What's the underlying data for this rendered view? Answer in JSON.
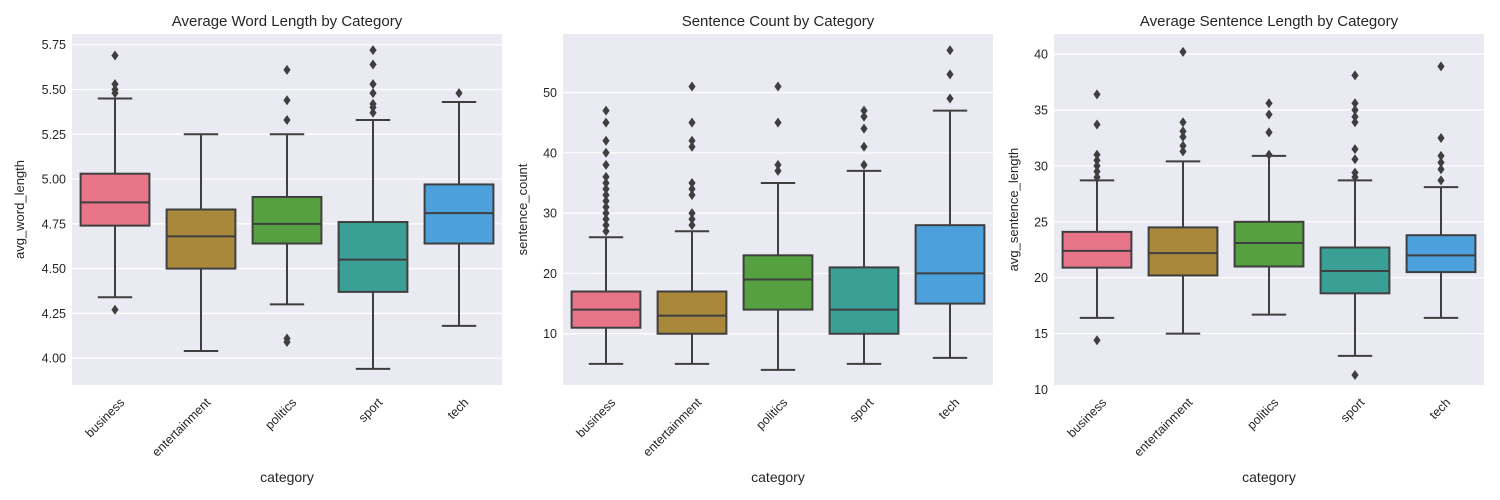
{
  "chart_data": [
    {
      "type": "box",
      "title": "Average Word Length by Category",
      "xlabel": "category",
      "ylabel": "avg_word_length",
      "categories": [
        "business",
        "entertainment",
        "politics",
        "sport",
        "tech"
      ],
      "ylim": [
        3.85,
        5.81
      ],
      "yticks": [
        4.0,
        4.25,
        4.5,
        4.75,
        5.0,
        5.25,
        5.5,
        5.75
      ],
      "ytick_labels": [
        "4.00",
        "4.25",
        "4.50",
        "4.75",
        "5.00",
        "5.25",
        "5.50",
        "5.75"
      ],
      "grid": true,
      "boxes": [
        {
          "category": "business",
          "whislo": 4.34,
          "q1": 4.74,
          "median": 4.87,
          "q3": 5.03,
          "whishi": 5.45,
          "fliers": [
            4.27,
            5.48,
            5.5,
            5.53,
            5.69
          ]
        },
        {
          "category": "entertainment",
          "whislo": 4.04,
          "q1": 4.5,
          "median": 4.68,
          "q3": 4.83,
          "whishi": 5.25,
          "fliers": []
        },
        {
          "category": "politics",
          "whislo": 4.3,
          "q1": 4.64,
          "median": 4.75,
          "q3": 4.9,
          "whishi": 5.25,
          "fliers": [
            4.09,
            4.11,
            5.33,
            5.44,
            5.61
          ]
        },
        {
          "category": "sport",
          "whislo": 3.94,
          "q1": 4.37,
          "median": 4.55,
          "q3": 4.76,
          "whishi": 5.33,
          "fliers": [
            5.37,
            5.4,
            5.42,
            5.48,
            5.53,
            5.64,
            5.72
          ]
        },
        {
          "category": "tech",
          "whislo": 4.18,
          "q1": 4.64,
          "median": 4.81,
          "q3": 4.97,
          "whishi": 5.43,
          "fliers": [
            5.48
          ]
        }
      ]
    },
    {
      "type": "box",
      "title": "Sentence Count by Category",
      "xlabel": "category",
      "ylabel": "sentence_count",
      "categories": [
        "business",
        "entertainment",
        "politics",
        "sport",
        "tech"
      ],
      "ylim": [
        1.5,
        59.7
      ],
      "yticks": [
        10,
        20,
        30,
        40,
        50
      ],
      "ytick_labels": [
        "10",
        "20",
        "30",
        "40",
        "50"
      ],
      "grid": true,
      "boxes": [
        {
          "category": "business",
          "whislo": 5,
          "q1": 11,
          "median": 14,
          "q3": 17,
          "whishi": 26,
          "fliers": [
            27,
            28,
            29,
            30,
            31,
            32,
            33,
            34,
            35,
            36,
            38,
            40,
            42,
            45,
            47
          ]
        },
        {
          "category": "entertainment",
          "whislo": 5,
          "q1": 10,
          "median": 13,
          "q3": 17,
          "whishi": 27,
          "fliers": [
            28,
            29,
            30,
            33,
            34,
            35,
            41,
            42,
            45,
            51
          ]
        },
        {
          "category": "politics",
          "whislo": 4,
          "q1": 14,
          "median": 19,
          "q3": 23,
          "whishi": 35,
          "fliers": [
            37,
            38,
            45,
            51
          ]
        },
        {
          "category": "sport",
          "whislo": 5,
          "q1": 10,
          "median": 14,
          "q3": 21,
          "whishi": 37,
          "fliers": [
            38,
            41,
            44,
            46,
            47
          ]
        },
        {
          "category": "tech",
          "whislo": 6,
          "q1": 15,
          "median": 20,
          "q3": 28,
          "whishi": 47,
          "fliers": [
            49,
            53,
            57
          ]
        }
      ]
    },
    {
      "type": "box",
      "title": "Average Sentence Length by Category",
      "xlabel": "category",
      "ylabel": "avg_sentence_length",
      "categories": [
        "business",
        "entertainment",
        "politics",
        "sport",
        "tech"
      ],
      "ylim": [
        10.4,
        41.8
      ],
      "yticks": [
        10,
        15,
        20,
        25,
        30,
        35,
        40
      ],
      "ytick_labels": [
        "10",
        "15",
        "20",
        "25",
        "30",
        "35",
        "40"
      ],
      "grid": true,
      "boxes": [
        {
          "category": "business",
          "whislo": 16.4,
          "q1": 20.9,
          "median": 22.4,
          "q3": 24.1,
          "whishi": 28.7,
          "fliers": [
            14.4,
            29.0,
            29.5,
            30.0,
            30.5,
            31.0,
            33.7,
            36.4
          ]
        },
        {
          "category": "entertainment",
          "whislo": 15.0,
          "q1": 20.2,
          "median": 22.2,
          "q3": 24.5,
          "whishi": 30.4,
          "fliers": [
            31.3,
            31.8,
            32.6,
            33.1,
            33.9,
            40.2
          ]
        },
        {
          "category": "politics",
          "whislo": 16.7,
          "q1": 21.0,
          "median": 23.1,
          "q3": 25.0,
          "whishi": 30.9,
          "fliers": [
            31.0,
            33.0,
            34.6,
            35.6
          ]
        },
        {
          "category": "sport",
          "whislo": 13.0,
          "q1": 18.6,
          "median": 20.6,
          "q3": 22.7,
          "whishi": 28.7,
          "fliers": [
            11.3,
            29.0,
            29.4,
            30.6,
            31.5,
            33.9,
            34.4,
            35.0,
            35.6,
            38.1
          ]
        },
        {
          "category": "tech",
          "whislo": 16.4,
          "q1": 20.5,
          "median": 22.0,
          "q3": 23.8,
          "whishi": 28.1,
          "fliers": [
            28.7,
            29.7,
            30.3,
            30.9,
            32.5,
            38.9
          ]
        }
      ]
    }
  ],
  "colors": {
    "palette": [
      "#e8748a",
      "#a8883a",
      "#55a040",
      "#3aa096",
      "#4ca0dc"
    ],
    "background": "#eaeaf2",
    "grid": "#ffffff",
    "line": "#3f3f3f"
  }
}
